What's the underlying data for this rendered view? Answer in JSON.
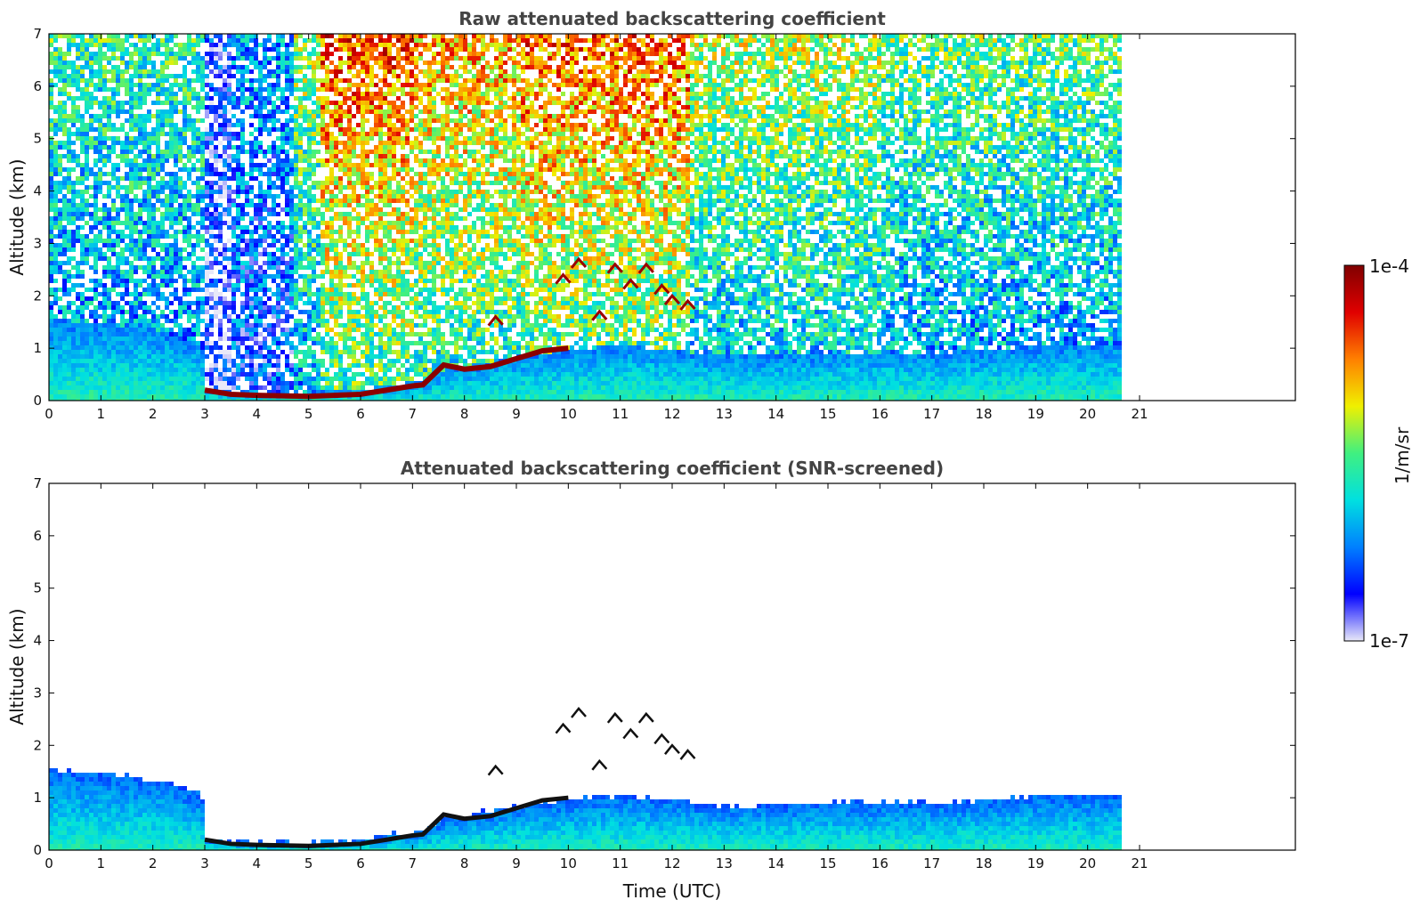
{
  "chart_data": [
    {
      "type": "heatmap",
      "title": "Raw attenuated backscattering coefficient",
      "xlabel": "",
      "ylabel": "Altitude (km)",
      "xlim": [
        0,
        24
      ],
      "ylim": [
        0,
        7
      ],
      "xticks": [
        0,
        1,
        2,
        3,
        4,
        5,
        6,
        7,
        8,
        9,
        10,
        11,
        12,
        13,
        14,
        15,
        16,
        17,
        18,
        19,
        20,
        21
      ],
      "yticks": [
        0,
        1,
        2,
        3,
        4,
        5,
        6,
        7
      ],
      "data_end_time": 20.6,
      "noise_background": [
        {
          "t0": 0.0,
          "t1": 3.0,
          "level": 0.45
        },
        {
          "t0": 3.0,
          "t1": 3.5,
          "level": 0.15
        },
        {
          "t0": 3.5,
          "t1": 4.7,
          "level": 0.3
        },
        {
          "t0": 4.7,
          "t1": 5.2,
          "level": 0.55
        },
        {
          "t0": 5.2,
          "t1": 7.0,
          "level": 0.8
        },
        {
          "t0": 7.0,
          "t1": 9.0,
          "level": 0.72
        },
        {
          "t0": 9.0,
          "t1": 12.3,
          "level": 0.78
        },
        {
          "t0": 12.3,
          "t1": 16.0,
          "level": 0.58
        },
        {
          "t0": 16.0,
          "t1": 20.6,
          "level": 0.5
        }
      ],
      "boundary_layer_top_km": {
        "time": [
          0,
          1,
          2,
          2.9,
          3.0,
          3.5,
          5,
          6,
          6.5,
          7.2,
          7.6,
          8,
          9,
          10,
          11,
          12,
          13,
          14,
          15,
          16,
          17,
          18,
          19,
          20,
          20.6
        ],
        "altitude": [
          1.6,
          1.5,
          1.4,
          1.1,
          0.25,
          0.2,
          0.2,
          0.25,
          0.35,
          0.4,
          0.65,
          0.7,
          0.9,
          1.0,
          1.1,
          1.0,
          0.9,
          0.9,
          0.95,
          0.95,
          0.95,
          1.0,
          1.1,
          1.1,
          1.1
        ]
      },
      "strong_layer_km": {
        "time": [
          3.0,
          3.5,
          4,
          5,
          5.5,
          6,
          6.5,
          7.0,
          7.2,
          7.6,
          8,
          8.5,
          9,
          9.5,
          10
        ],
        "altitude": [
          0.2,
          0.12,
          0.1,
          0.08,
          0.1,
          0.12,
          0.2,
          0.28,
          0.3,
          0.68,
          0.6,
          0.65,
          0.8,
          0.95,
          1.0
        ]
      },
      "cloud_segments_km": [
        {
          "time": 8.6,
          "altitude": 1.5
        },
        {
          "time": 9.9,
          "altitude": 2.3
        },
        {
          "time": 10.2,
          "altitude": 2.6
        },
        {
          "time": 10.6,
          "altitude": 1.6
        },
        {
          "time": 10.9,
          "altitude": 2.5
        },
        {
          "time": 11.2,
          "altitude": 2.2
        },
        {
          "time": 11.5,
          "altitude": 2.5
        },
        {
          "time": 11.8,
          "altitude": 2.1
        },
        {
          "time": 12.0,
          "altitude": 1.9
        },
        {
          "time": 12.3,
          "altitude": 1.8
        }
      ]
    },
    {
      "type": "heatmap",
      "title": "Attenuated backscattering coefficient (SNR-screened)",
      "xlabel": "Time (UTC)",
      "ylabel": "Altitude (km)",
      "xlim": [
        0,
        24
      ],
      "ylim": [
        0,
        7
      ],
      "xticks": [
        0,
        1,
        2,
        3,
        4,
        5,
        6,
        7,
        8,
        9,
        10,
        11,
        12,
        13,
        14,
        15,
        16,
        17,
        18,
        19,
        20,
        21
      ],
      "yticks": [
        0,
        1,
        2,
        3,
        4,
        5,
        6,
        7
      ],
      "data_end_time": 20.6
    }
  ],
  "colorbar": {
    "label": "1/m/sr",
    "max_label": "1e-4",
    "min_label": "1e-7",
    "colors": [
      "#e8e8f8",
      "#0000ff",
      "#0080ff",
      "#00e0e0",
      "#40f080",
      "#f0f000",
      "#ff8000",
      "#e00000",
      "#800000"
    ]
  }
}
